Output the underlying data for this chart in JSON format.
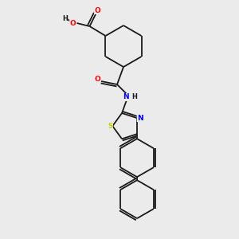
{
  "background_color": "#EBEBEB",
  "bond_color": "#1a1a1a",
  "atom_colors": {
    "O": "#FF0000",
    "N": "#0000FF",
    "S": "#CCCC00",
    "C": "#1a1a1a",
    "H": "#1a1a1a"
  },
  "figsize": [
    3.0,
    3.0
  ],
  "dpi": 100
}
